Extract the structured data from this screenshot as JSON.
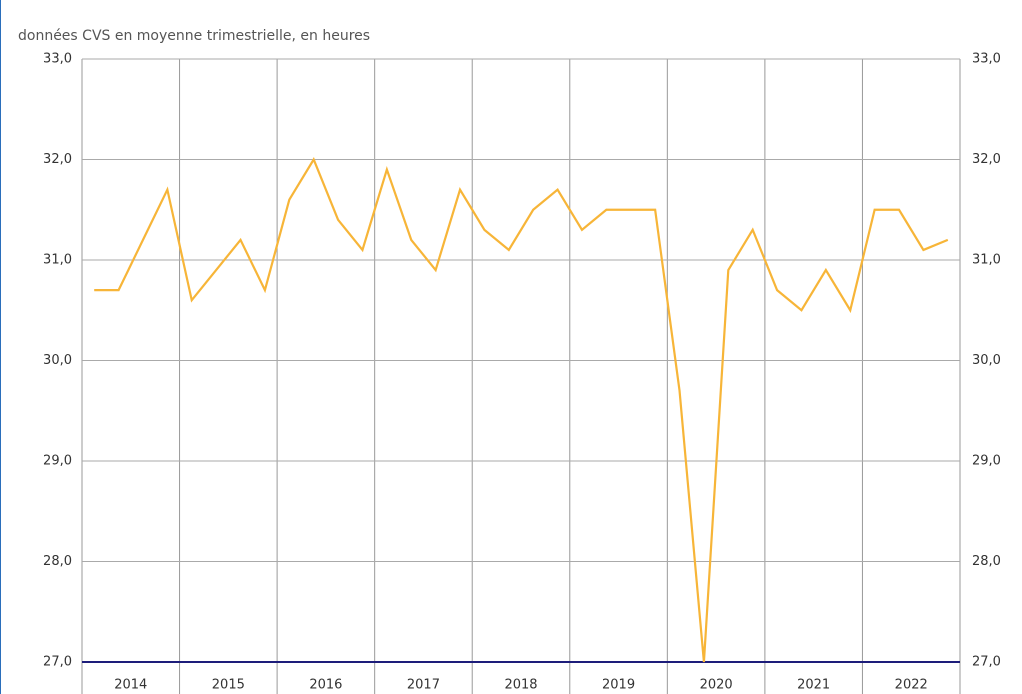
{
  "chart_data": {
    "type": "line",
    "subtitle": "données CVS en moyenne trimestrielle, en heures",
    "year_groups": [
      "2014",
      "2015",
      "2016",
      "2017",
      "2018",
      "2019",
      "2020",
      "2021",
      "2022"
    ],
    "series": [
      {
        "color": "#f7b538",
        "values": [
          30.7,
          30.7,
          31.2,
          31.7,
          30.6,
          30.9,
          31.2,
          30.7,
          31.6,
          32.0,
          31.4,
          31.1,
          31.9,
          31.2,
          30.9,
          31.7,
          31.3,
          31.1,
          31.5,
          31.7,
          31.3,
          31.5,
          31.5,
          31.5,
          29.7,
          27.0,
          30.9,
          31.3,
          30.7,
          30.5,
          30.9,
          30.5,
          31.5,
          31.5,
          31.1,
          31.2
        ]
      }
    ],
    "ylim": [
      27,
      33
    ],
    "yticks": [
      {
        "value": 27,
        "label": "27,0"
      },
      {
        "value": 28,
        "label": "28,0"
      },
      {
        "value": 29,
        "label": "29,0"
      },
      {
        "value": 30,
        "label": "30,0"
      },
      {
        "value": 31,
        "label": "31,0"
      },
      {
        "value": 32,
        "label": "32,0"
      },
      {
        "value": 33,
        "label": "33,0"
      }
    ],
    "grid": true
  }
}
